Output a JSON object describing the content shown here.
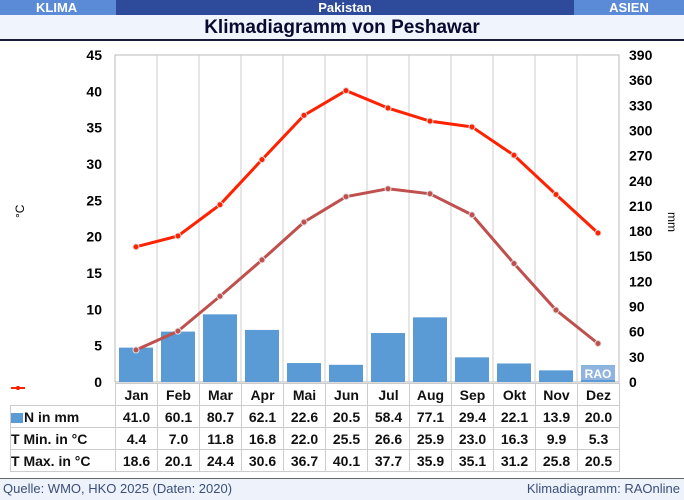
{
  "header": {
    "left": "KLIMA",
    "center": "Pakistan",
    "right": "ASIEN"
  },
  "title": "Klimadiagramm von Peshawar",
  "footer": {
    "source": "Quelle: WMO, HKO 2025 (Daten: 2020)",
    "credit": "Klimadiagramm: RAOnline"
  },
  "watermark": "RAO",
  "colors": {
    "bars": "#5b9bd5",
    "tmin": "#c0504d",
    "tmax": "#ff2200"
  },
  "chart_data": {
    "type": "bar+line",
    "title": "Klimadiagramm von Peshawar",
    "categories": [
      "Jan",
      "Feb",
      "Mar",
      "Apr",
      "Mai",
      "Jun",
      "Jul",
      "Aug",
      "Sep",
      "Okt",
      "Nov",
      "Dez"
    ],
    "ylabel_left": "°C",
    "ylabel_right": "mm",
    "ylim_left": [
      0,
      45
    ],
    "ylim_right": [
      0,
      390
    ],
    "yticks_left": [
      "0",
      "5",
      "10",
      "15",
      "20",
      "25",
      "30",
      "35",
      "40",
      "45"
    ],
    "yticks_right": [
      "0",
      "30",
      "60",
      "90",
      "120",
      "150",
      "180",
      "210",
      "240",
      "270",
      "300",
      "330",
      "360",
      "390"
    ],
    "series": [
      {
        "name": "N in mm",
        "type": "bar",
        "axis": "right",
        "values": [
          41.0,
          60.1,
          80.7,
          62.1,
          22.6,
          20.5,
          58.4,
          77.1,
          29.4,
          22.1,
          13.9,
          20.0
        ],
        "labels": [
          "41.0",
          "60.1",
          "80.7",
          "62.1",
          "22.6",
          "20.5",
          "58.4",
          "77.1",
          "29.4",
          "22.1",
          "13.9",
          "20.0"
        ]
      },
      {
        "name": "T Min. in °C",
        "type": "line",
        "axis": "left",
        "values": [
          4.4,
          7.0,
          11.8,
          16.8,
          22.0,
          25.5,
          26.6,
          25.9,
          23.0,
          16.3,
          9.9,
          5.3
        ],
        "labels": [
          "4.4",
          "7.0",
          "11.8",
          "16.8",
          "22.0",
          "25.5",
          "26.6",
          "25.9",
          "23.0",
          "16.3",
          "9.9",
          "5.3"
        ]
      },
      {
        "name": "T Max. in °C",
        "type": "line",
        "axis": "left",
        "values": [
          18.6,
          20.1,
          24.4,
          30.6,
          36.7,
          40.1,
          37.7,
          35.9,
          35.1,
          31.2,
          25.8,
          20.5
        ],
        "labels": [
          "18.6",
          "20.1",
          "24.4",
          "30.6",
          "36.7",
          "40.1",
          "37.7",
          "35.9",
          "35.1",
          "31.2",
          "25.8",
          "20.5"
        ]
      }
    ]
  }
}
